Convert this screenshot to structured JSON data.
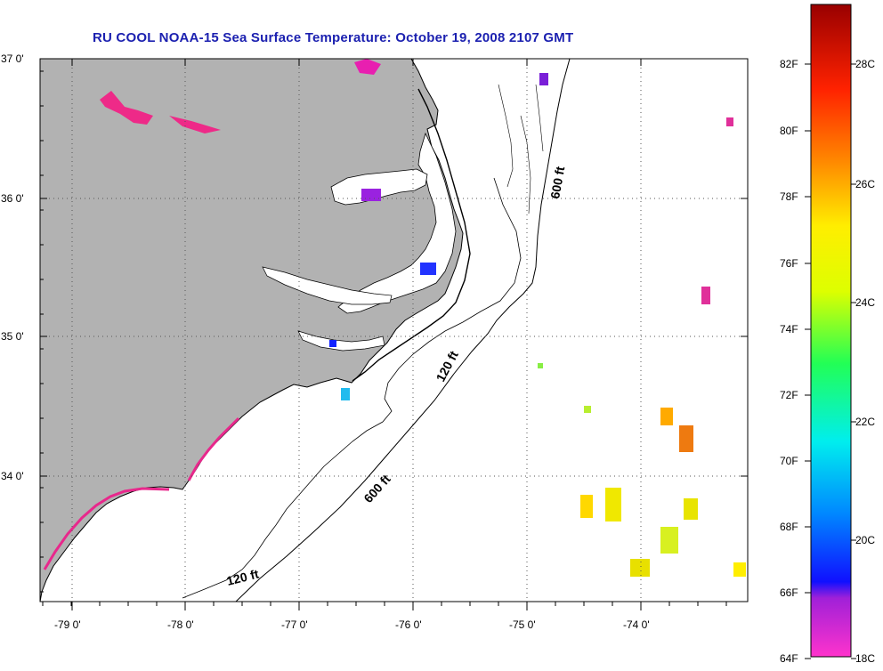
{
  "title": "RU COOL  NOAA-15  Sea Surface Temperature:  October 19, 2008 2107 GMT",
  "map": {
    "lat_ticks": [
      "37 0'",
      "36 0'",
      "35 0'",
      "34 0'"
    ],
    "lon_ticks": [
      "-79 0'",
      "-78 0'",
      "-77 0'",
      "-76 0'",
      "-75 0'",
      "-74 0'"
    ],
    "contour_labels": [
      "600 ft",
      "120 ft",
      "600 ft",
      "120 ft"
    ],
    "colors": {
      "land": "#b2b2b2",
      "ocean": "#ffffff",
      "coast": "#000000",
      "grid": "#555555"
    }
  },
  "colorbar": {
    "fahrenheit_labels": [
      "82F",
      "80F",
      "78F",
      "76F",
      "74F",
      "72F",
      "70F",
      "68F",
      "66F",
      "64F"
    ],
    "celsius_labels": [
      "28C",
      "26C",
      "24C",
      "22C",
      "20C",
      "18C"
    ],
    "min_c": 17.8,
    "max_c": 29.2
  }
}
